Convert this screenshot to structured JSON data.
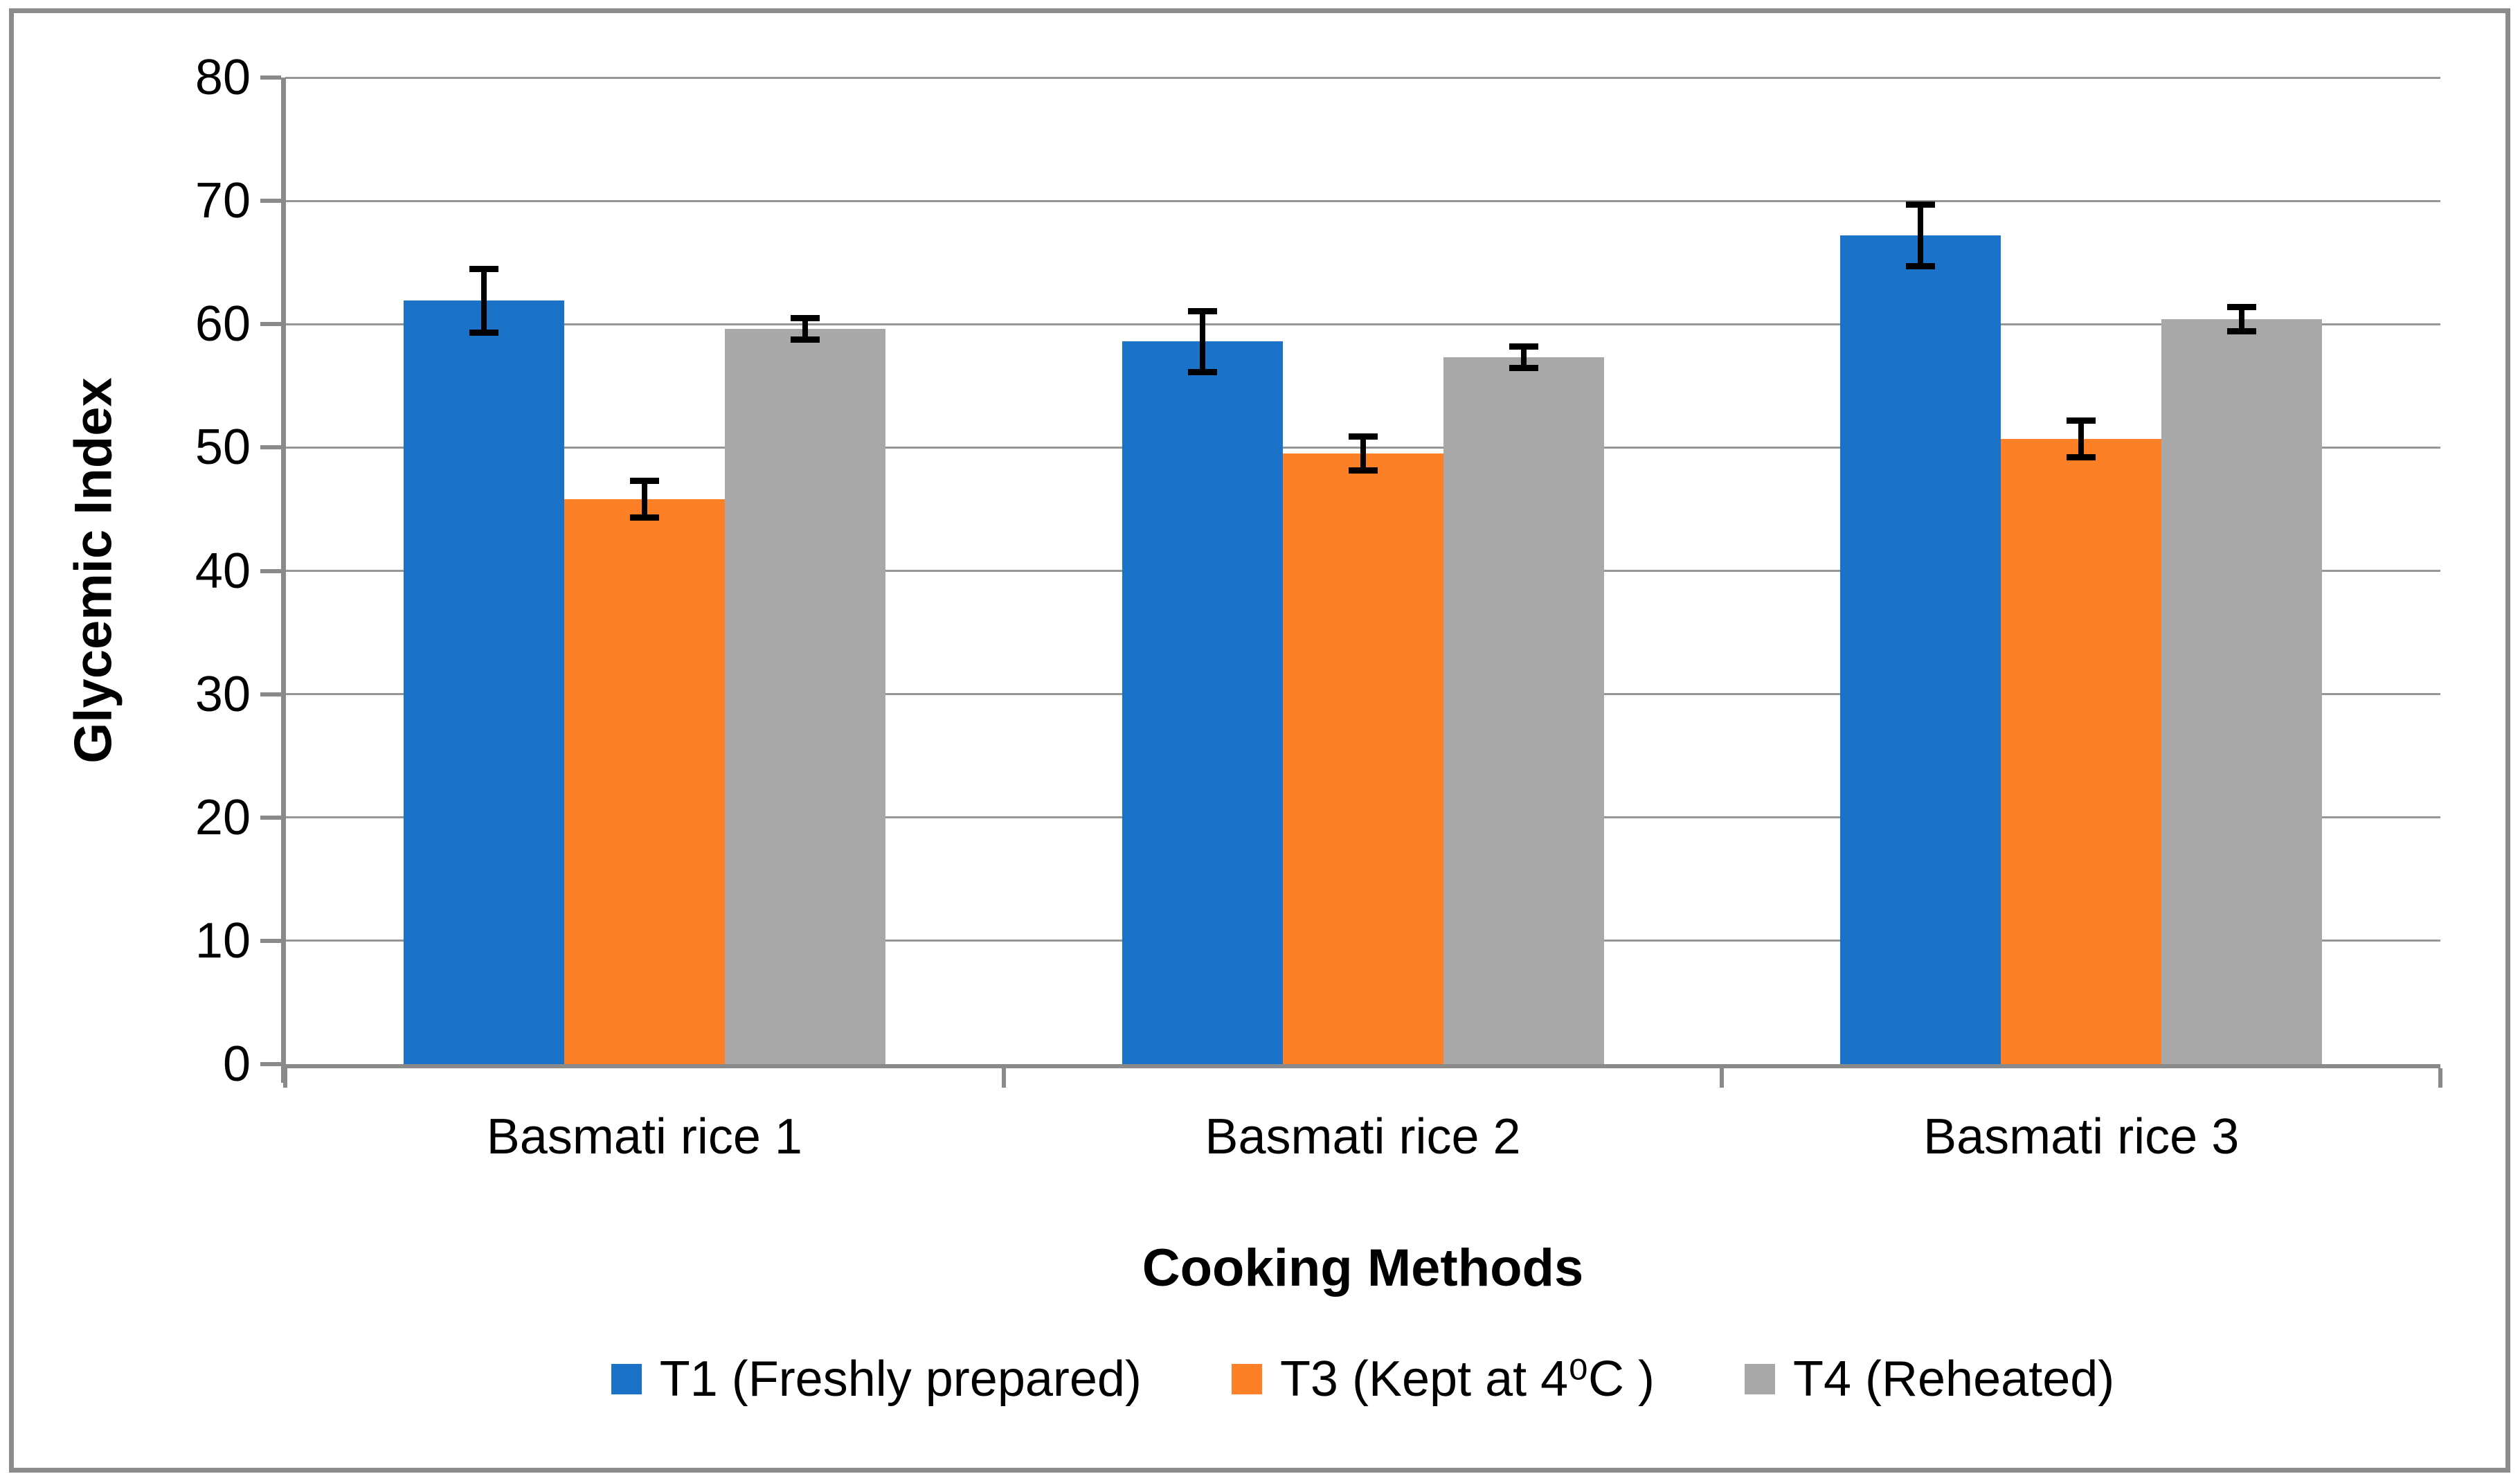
{
  "chart_data": {
    "type": "bar",
    "title": "",
    "categories": [
      "Basmati rice 1",
      "Basmati rice 2",
      "Basmati rice 3"
    ],
    "series": [
      {
        "name": "T1 (Freshly prepared)",
        "color": "#1b73c9",
        "values": [
          61.9,
          58.6,
          67.2
        ],
        "errors": [
          2.6,
          2.5,
          2.5
        ]
      },
      {
        "name": "T3 (Kept at 4⁰C )",
        "color": "#fd8026",
        "values": [
          45.8,
          49.5,
          50.7
        ],
        "errors": [
          1.5,
          1.4,
          1.5
        ]
      },
      {
        "name": "T4 (Reheated)",
        "color": "#a8a8a8",
        "values": [
          59.6,
          57.3,
          60.4
        ],
        "errors": [
          0.9,
          0.9,
          1.0
        ]
      }
    ],
    "xlabel": "Cooking Methods",
    "ylabel": "Glycemic Index",
    "ylim": [
      0,
      80
    ],
    "ytick_step": 10,
    "y_tick_labels": [
      "0",
      "10",
      "20",
      "30",
      "40",
      "50",
      "60",
      "70",
      "80"
    ],
    "grid": true,
    "error_bars": true,
    "legend_position": "bottom",
    "colors": {
      "gridline": "#969696",
      "axis": "#8a8a8a",
      "frame": "#8c8c8c",
      "error_bar": "#000000",
      "text": "#000000"
    }
  }
}
